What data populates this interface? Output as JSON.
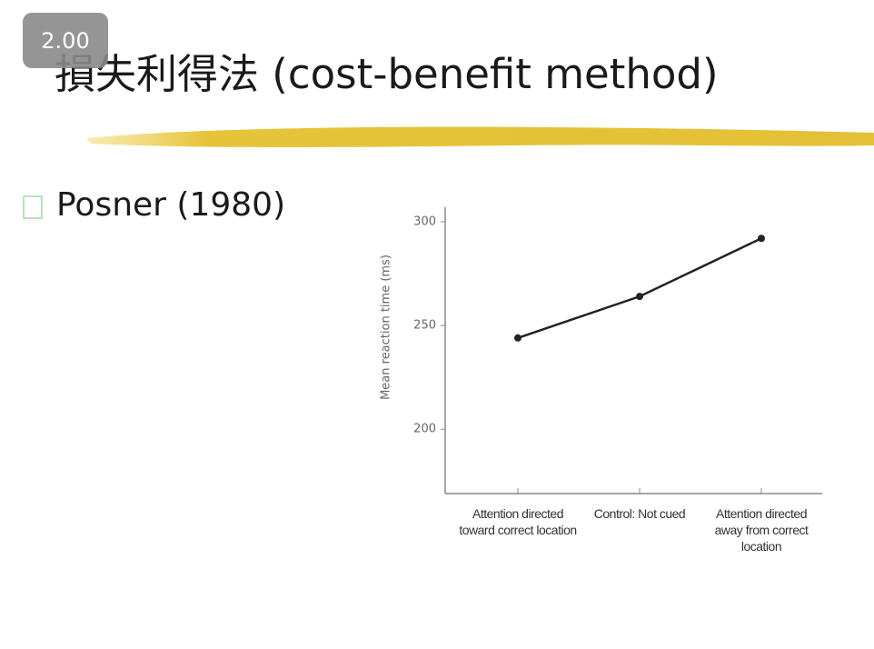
{
  "badge": "2.00",
  "slide": {
    "title": "損失利得法 (cost-benefit method)",
    "bullet": "Posner (1980)"
  },
  "chart_data": {
    "type": "line",
    "y_label": "Mean reaction time (ms)",
    "categories": [
      "Attention directed toward correct location",
      "Control: Not cued",
      "Attention directed away from correct location"
    ],
    "series": [
      {
        "name": "Mean reaction time",
        "color": "#222222",
        "values": [
          244,
          264,
          292
        ]
      }
    ],
    "ylim": [
      169,
      307
    ],
    "yticks": [
      200,
      250,
      300
    ],
    "grid": false
  }
}
